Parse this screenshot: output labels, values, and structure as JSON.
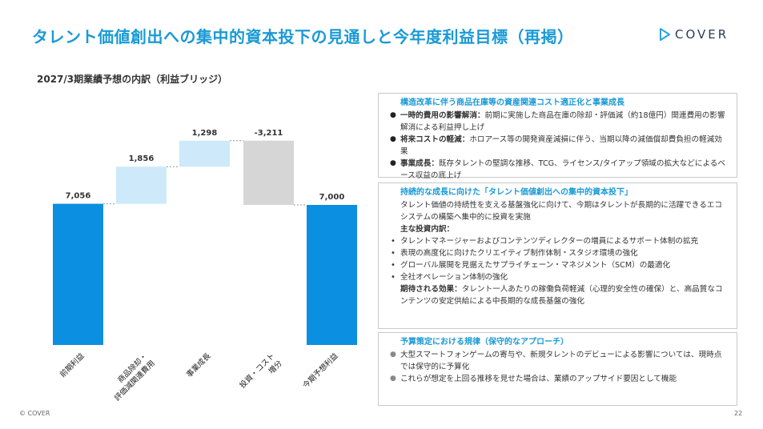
{
  "title": "タレント価値創出への集中的資本投下の見通しと今年度利益目標（再掲）",
  "logo_text": "COVER",
  "subtitle": "2027/3期業績予想の内訳（利益ブリッジ）",
  "chart_data": {
    "type": "waterfall",
    "title": "2027/3期業績予想の内訳（利益ブリッジ）",
    "categories": [
      "前期利益",
      "商品除却・評価減関連費用",
      "事業成長",
      "投資・コスト増分",
      "今期予想利益"
    ],
    "category_lines": [
      [
        "前期利益"
      ],
      [
        "商品除却・",
        "評価減関連費用"
      ],
      [
        "事業成長"
      ],
      [
        "投資・コスト",
        "増分"
      ],
      [
        "今期予想利益"
      ]
    ],
    "kinds": [
      "total",
      "increase",
      "increase",
      "decrease",
      "total"
    ],
    "values": [
      7056,
      1856,
      1298,
      -3211,
      7000
    ],
    "value_labels": [
      "7,056",
      "1,856",
      "1,298",
      "-3,211",
      "7,000"
    ],
    "colors": {
      "total": "#0b8fe0",
      "increase": "#cde9fa",
      "decrease": "#d6d6d6"
    }
  },
  "panel1": {
    "heading": "構造改革に伴う商品在庫等の資産関連コスト適正化と事業成長",
    "items": [
      {
        "bold": "一時的費用の影響解消：",
        "text": "前期に実施した商品在庫の除却・評価減（約18億円）関連費用の影響解消による利益押し上げ"
      },
      {
        "bold": "将来コストの軽減：",
        "text": "ホロアース等の開発資産減損に伴う、当期以降の減価償却費負担の軽減効果"
      },
      {
        "bold": "事業成長：",
        "text": "既存タレントの堅調な推移、TCG、ライセンス/タイアップ領域の拡大などによるベース収益の底上げ"
      }
    ]
  },
  "panel2": {
    "heading": "持続的な成長に向けた「タレント価値創出への集中的資本投下」",
    "intro": "タレント価値の持続性を支える基盤強化に向けて、今期はタレントが長期的に活躍できるエコシステムの構築へ集中的に投資を実施",
    "list_heading": "主な投資内訳：",
    "list": [
      "タレントマネージャーおよびコンテンツディレクターの増員によるサポート体制の拡充",
      "表現の高度化に向けたクリエイティブ制作体制・スタジオ環境の強化",
      "グローバル展開を見据えたサプライチェーン・マネジメント（SCM）の最適化",
      "全社オペレーション体制の強化"
    ],
    "effect_bold": "期待される効果：",
    "effect_text": "タレント一人あたりの稼働負荷軽減（心理的安全性の確保）と、高品質なコンテンツの安定供給による中長期的な成長基盤の強化"
  },
  "panel3": {
    "heading": "予算策定における規律（保守的なアプローチ）",
    "items": [
      "大型スマートフォンゲームの寄与や、新規タレントのデビューによる影響については、現時点では保守的に予算化",
      "これらが想定を上回る推移を見せた場合は、業績のアップサイド要因として機能"
    ]
  },
  "footer": "© COVER",
  "page_number": "22"
}
